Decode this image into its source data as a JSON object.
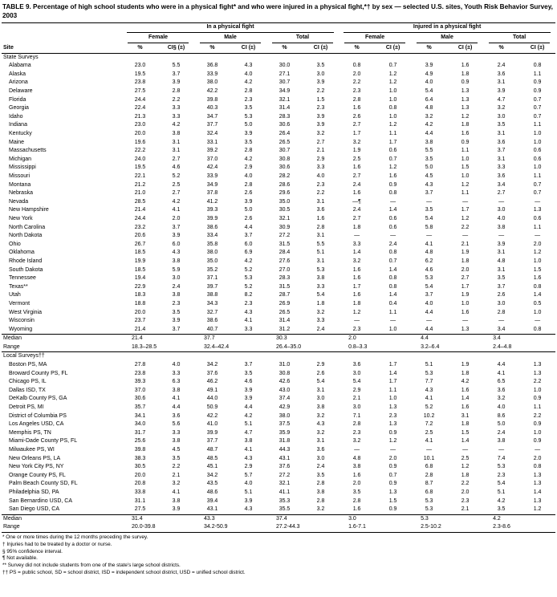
{
  "title": "TABLE 9. Percentage of high school students who were in a physical fight* and who were injured in a physical fight,*† by sex — selected U.S. sites, Youth Risk Behavior Survey, 2003",
  "header": {
    "site_label": "Site",
    "groups": [
      {
        "label": "In a physical fight"
      },
      {
        "label": "Injured in a physical fight"
      }
    ],
    "subgroups": [
      "Female",
      "Male",
      "Total"
    ],
    "value_headers": [
      "%",
      "CI§ (±)",
      "%",
      "CI (±)",
      "%",
      "CI (±)",
      "%",
      "CI (±)",
      "%",
      "CI (±)",
      "%",
      "CI (±)"
    ]
  },
  "sections": [
    {
      "name": "State Surveys",
      "rows": [
        {
          "site": "Alabama",
          "values": [
            "23.0",
            "5.5",
            "36.8",
            "4.3",
            "30.0",
            "3.5",
            "0.8",
            "0.7",
            "3.9",
            "1.6",
            "2.4",
            "0.8"
          ]
        },
        {
          "site": "Alaska",
          "values": [
            "19.5",
            "3.7",
            "33.9",
            "4.0",
            "27.1",
            "3.0",
            "2.0",
            "1.2",
            "4.9",
            "1.8",
            "3.6",
            "1.1"
          ]
        },
        {
          "site": "Arizona",
          "values": [
            "23.8",
            "3.9",
            "38.0",
            "4.2",
            "30.7",
            "3.9",
            "2.2",
            "1.2",
            "4.0",
            "0.9",
            "3.1",
            "0.9"
          ]
        },
        {
          "site": "Delaware",
          "values": [
            "27.5",
            "2.8",
            "42.2",
            "2.8",
            "34.9",
            "2.2",
            "2.3",
            "1.0",
            "5.4",
            "1.3",
            "3.9",
            "0.9"
          ]
        },
        {
          "site": "Florida",
          "values": [
            "24.4",
            "2.2",
            "39.8",
            "2.3",
            "32.1",
            "1.5",
            "2.8",
            "1.0",
            "6.4",
            "1.3",
            "4.7",
            "0.7"
          ]
        },
        {
          "site": "Georgia",
          "values": [
            "22.4",
            "3.3",
            "40.3",
            "3.5",
            "31.4",
            "2.3",
            "1.6",
            "0.8",
            "4.8",
            "1.3",
            "3.2",
            "0.7"
          ]
        },
        {
          "site": "Idaho",
          "values": [
            "21.3",
            "3.3",
            "34.7",
            "5.3",
            "28.3",
            "3.9",
            "2.6",
            "1.0",
            "3.2",
            "1.2",
            "3.0",
            "0.7"
          ]
        },
        {
          "site": "Indiana",
          "values": [
            "23.0",
            "4.2",
            "37.7",
            "5.0",
            "30.6",
            "3.9",
            "2.7",
            "1.2",
            "4.2",
            "1.8",
            "3.5",
            "1.1"
          ]
        },
        {
          "site": "Kentucky",
          "values": [
            "20.0",
            "3.8",
            "32.4",
            "3.9",
            "26.4",
            "3.2",
            "1.7",
            "1.1",
            "4.4",
            "1.6",
            "3.1",
            "1.0"
          ]
        },
        {
          "site": "Maine",
          "values": [
            "19.6",
            "3.1",
            "33.1",
            "3.5",
            "26.5",
            "2.7",
            "3.2",
            "1.7",
            "3.8",
            "0.9",
            "3.6",
            "1.0"
          ]
        },
        {
          "site": "Massachusetts",
          "values": [
            "22.2",
            "3.1",
            "39.2",
            "2.8",
            "30.7",
            "2.1",
            "1.9",
            "0.6",
            "5.5",
            "1.1",
            "3.7",
            "0.6"
          ]
        },
        {
          "site": "Michigan",
          "values": [
            "24.0",
            "2.7",
            "37.0",
            "4.2",
            "30.8",
            "2.9",
            "2.5",
            "0.7",
            "3.5",
            "1.0",
            "3.1",
            "0.6"
          ]
        },
        {
          "site": "Mississippi",
          "values": [
            "19.5",
            "4.6",
            "42.4",
            "2.9",
            "30.6",
            "3.3",
            "1.6",
            "1.2",
            "5.0",
            "1.5",
            "3.3",
            "1.0"
          ]
        },
        {
          "site": "Missouri",
          "values": [
            "22.1",
            "5.2",
            "33.9",
            "4.0",
            "28.2",
            "4.0",
            "2.7",
            "1.6",
            "4.5",
            "1.0",
            "3.6",
            "1.1"
          ]
        },
        {
          "site": "Montana",
          "values": [
            "21.2",
            "2.5",
            "34.9",
            "2.8",
            "28.6",
            "2.3",
            "2.4",
            "0.9",
            "4.3",
            "1.2",
            "3.4",
            "0.7"
          ]
        },
        {
          "site": "Nebraska",
          "values": [
            "21.0",
            "2.7",
            "37.8",
            "2.6",
            "29.6",
            "2.2",
            "1.6",
            "0.8",
            "3.7",
            "1.1",
            "2.7",
            "0.7"
          ]
        },
        {
          "site": "Nevada",
          "values": [
            "28.5",
            "4.2",
            "41.2",
            "3.9",
            "35.0",
            "3.1",
            "—¶",
            "—",
            "—",
            "—",
            "—",
            "—"
          ]
        },
        {
          "site": "New Hampshire",
          "values": [
            "21.4",
            "4.1",
            "39.3",
            "5.0",
            "30.5",
            "3.6",
            "2.4",
            "1.4",
            "3.5",
            "1.7",
            "3.0",
            "1.3"
          ]
        },
        {
          "site": "New York",
          "values": [
            "24.4",
            "2.0",
            "39.9",
            "2.6",
            "32.1",
            "1.6",
            "2.7",
            "0.6",
            "5.4",
            "1.2",
            "4.0",
            "0.6"
          ]
        },
        {
          "site": "North Carolina",
          "values": [
            "23.2",
            "3.7",
            "38.6",
            "4.4",
            "30.9",
            "2.8",
            "1.8",
            "0.6",
            "5.8",
            "2.2",
            "3.8",
            "1.1"
          ]
        },
        {
          "site": "North Dakota",
          "values": [
            "20.6",
            "3.9",
            "33.4",
            "3.7",
            "27.2",
            "3.1",
            "—",
            "—",
            "—",
            "—",
            "—",
            "—"
          ]
        },
        {
          "site": "Ohio",
          "values": [
            "26.7",
            "6.0",
            "35.8",
            "6.0",
            "31.5",
            "5.5",
            "3.3",
            "2.4",
            "4.1",
            "2.1",
            "3.9",
            "2.0"
          ]
        },
        {
          "site": "Oklahoma",
          "values": [
            "18.5",
            "4.3",
            "38.0",
            "6.9",
            "28.4",
            "5.1",
            "1.4",
            "0.8",
            "4.8",
            "1.9",
            "3.1",
            "1.2"
          ]
        },
        {
          "site": "Rhode Island",
          "values": [
            "19.9",
            "3.8",
            "35.0",
            "4.2",
            "27.6",
            "3.1",
            "3.2",
            "0.7",
            "6.2",
            "1.8",
            "4.8",
            "1.0"
          ]
        },
        {
          "site": "South Dakota",
          "values": [
            "18.5",
            "5.9",
            "35.2",
            "5.2",
            "27.0",
            "5.3",
            "1.6",
            "1.4",
            "4.6",
            "2.0",
            "3.1",
            "1.5"
          ]
        },
        {
          "site": "Tennessee",
          "values": [
            "19.4",
            "3.0",
            "37.1",
            "5.3",
            "28.3",
            "3.8",
            "1.6",
            "0.8",
            "5.3",
            "2.7",
            "3.5",
            "1.6"
          ]
        },
        {
          "site": "Texas**",
          "values": [
            "22.9",
            "2.4",
            "39.7",
            "5.2",
            "31.5",
            "3.3",
            "1.7",
            "0.8",
            "5.4",
            "1.7",
            "3.7",
            "0.8"
          ]
        },
        {
          "site": "Utah",
          "values": [
            "18.3",
            "3.8",
            "38.8",
            "8.2",
            "28.7",
            "5.4",
            "1.6",
            "1.4",
            "3.7",
            "1.9",
            "2.6",
            "1.4"
          ]
        },
        {
          "site": "Vermont",
          "values": [
            "18.8",
            "2.3",
            "34.3",
            "2.3",
            "26.9",
            "1.8",
            "1.8",
            "0.4",
            "4.0",
            "1.0",
            "3.0",
            "0.5"
          ]
        },
        {
          "site": "West Virginia",
          "values": [
            "20.0",
            "3.5",
            "32.7",
            "4.3",
            "26.5",
            "3.2",
            "1.2",
            "1.1",
            "4.4",
            "1.6",
            "2.8",
            "1.0"
          ]
        },
        {
          "site": "Wisconsin",
          "values": [
            "23.7",
            "3.9",
            "38.6",
            "4.1",
            "31.4",
            "3.3",
            "—",
            "—",
            "—",
            "—",
            "—",
            "—"
          ]
        },
        {
          "site": "Wyoming",
          "values": [
            "21.4",
            "3.7",
            "40.7",
            "3.3",
            "31.2",
            "2.4",
            "2.3",
            "1.0",
            "4.4",
            "1.3",
            "3.4",
            "0.8"
          ]
        }
      ],
      "median": {
        "label": "Median",
        "values": [
          "21.4",
          "37.7",
          "30.3",
          "2.0",
          "4.4",
          "3.4"
        ]
      },
      "range": {
        "label": "Range",
        "values": [
          "18.3–28.5",
          "32.4–42.4",
          "26.4–35.0",
          "0.8–3.3",
          "3.2–6.4",
          "2.4–4.8"
        ]
      }
    },
    {
      "name": "Local Surveys††",
      "rows": [
        {
          "site": "Boston PS, MA",
          "values": [
            "27.8",
            "4.0",
            "34.2",
            "3.7",
            "31.0",
            "2.9",
            "3.6",
            "1.7",
            "5.1",
            "1.9",
            "4.4",
            "1.3"
          ]
        },
        {
          "site": "Broward County PS, FL",
          "values": [
            "23.8",
            "3.3",
            "37.6",
            "3.5",
            "30.8",
            "2.6",
            "3.0",
            "1.4",
            "5.3",
            "1.8",
            "4.1",
            "1.3"
          ]
        },
        {
          "site": "Chicago PS, IL",
          "values": [
            "39.3",
            "6.3",
            "46.2",
            "4.6",
            "42.6",
            "5.4",
            "5.4",
            "1.7",
            "7.7",
            "4.2",
            "6.5",
            "2.2"
          ]
        },
        {
          "site": "Dallas ISD, TX",
          "values": [
            "37.0",
            "3.8",
            "49.1",
            "3.9",
            "43.0",
            "3.1",
            "2.9",
            "1.1",
            "4.3",
            "1.6",
            "3.6",
            "1.0"
          ]
        },
        {
          "site": "DeKalb County PS, GA",
          "values": [
            "30.6",
            "4.1",
            "44.0",
            "3.9",
            "37.4",
            "3.0",
            "2.1",
            "1.0",
            "4.1",
            "1.4",
            "3.2",
            "0.9"
          ]
        },
        {
          "site": "Detroit PS, MI",
          "values": [
            "35.7",
            "4.4",
            "50.9",
            "4.4",
            "42.9",
            "3.8",
            "3.0",
            "1.3",
            "5.2",
            "1.6",
            "4.0",
            "1.1"
          ]
        },
        {
          "site": "District of Columbia PS",
          "values": [
            "34.1",
            "3.6",
            "42.2",
            "4.2",
            "38.0",
            "3.2",
            "7.1",
            "2.3",
            "10.2",
            "3.1",
            "8.6",
            "2.2"
          ]
        },
        {
          "site": "Los Angeles USD, CA",
          "values": [
            "34.0",
            "5.6",
            "41.0",
            "5.1",
            "37.5",
            "4.3",
            "2.8",
            "1.3",
            "7.2",
            "1.8",
            "5.0",
            "0.9"
          ]
        },
        {
          "site": "Memphis PS, TN",
          "values": [
            "31.7",
            "3.3",
            "39.9",
            "4.7",
            "35.9",
            "3.2",
            "2.3",
            "0.9",
            "2.5",
            "1.5",
            "2.4",
            "1.0"
          ]
        },
        {
          "site": "Miami-Dade County PS, FL",
          "values": [
            "25.6",
            "3.8",
            "37.7",
            "3.8",
            "31.8",
            "3.1",
            "3.2",
            "1.2",
            "4.1",
            "1.4",
            "3.8",
            "0.9"
          ]
        },
        {
          "site": "Milwaukee PS, WI",
          "values": [
            "39.8",
            "4.5",
            "48.7",
            "4.1",
            "44.3",
            "3.6",
            "—",
            "—",
            "—",
            "—",
            "—",
            "—"
          ]
        },
        {
          "site": "New Orleans PS, LA",
          "values": [
            "38.3",
            "3.5",
            "48.5",
            "4.3",
            "43.1",
            "3.0",
            "4.8",
            "2.0",
            "10.1",
            "2.5",
            "7.4",
            "2.0"
          ]
        },
        {
          "site": "New York City PS, NY",
          "values": [
            "30.5",
            "2.2",
            "45.1",
            "2.9",
            "37.6",
            "2.4",
            "3.8",
            "0.9",
            "6.8",
            "1.2",
            "5.3",
            "0.8"
          ]
        },
        {
          "site": "Orange County PS, FL",
          "values": [
            "20.0",
            "2.1",
            "34.2",
            "5.7",
            "27.2",
            "3.5",
            "1.6",
            "0.7",
            "2.8",
            "1.8",
            "2.3",
            "1.3"
          ]
        },
        {
          "site": "Palm Beach County SD, FL",
          "values": [
            "20.8",
            "3.2",
            "43.5",
            "4.0",
            "32.1",
            "2.8",
            "2.0",
            "0.9",
            "8.7",
            "2.2",
            "5.4",
            "1.3"
          ]
        },
        {
          "site": "Philadelphia SD, PA",
          "values": [
            "33.8",
            "4.1",
            "48.6",
            "5.1",
            "41.1",
            "3.8",
            "3.5",
            "1.3",
            "6.8",
            "2.0",
            "5.1",
            "1.4"
          ]
        },
        {
          "site": "San Bernardino USD, CA",
          "values": [
            "31.1",
            "3.8",
            "39.4",
            "3.9",
            "35.3",
            "2.8",
            "2.8",
            "1.5",
            "5.3",
            "2.3",
            "4.2",
            "1.3"
          ]
        },
        {
          "site": "San Diego USD, CA",
          "values": [
            "27.5",
            "3.9",
            "43.1",
            "4.3",
            "35.5",
            "3.2",
            "1.6",
            "0.9",
            "5.3",
            "2.1",
            "3.5",
            "1.2"
          ]
        }
      ],
      "median": {
        "label": "Median",
        "values": [
          "31.4",
          "43.3",
          "37.4",
          "3.0",
          "5.3",
          "4.2"
        ]
      },
      "range": {
        "label": "Range",
        "values": [
          "20.0-39.8",
          "34.2-50.9",
          "27.2-44.3",
          "1.6-7.1",
          "2.5-10.2",
          "2.3-8.6"
        ]
      }
    }
  ],
  "footnotes": [
    "* One or more times during the 12 months preceding the survey.",
    "† Injuries had to be treated by a doctor or nurse.",
    "§ 95% confidence interval.",
    "¶ Not available.",
    "** Survey did not include students from one of the state's large school districts.",
    "†† PS = public school, SD = school district, ISD = independent school district, USD = unified school district."
  ]
}
